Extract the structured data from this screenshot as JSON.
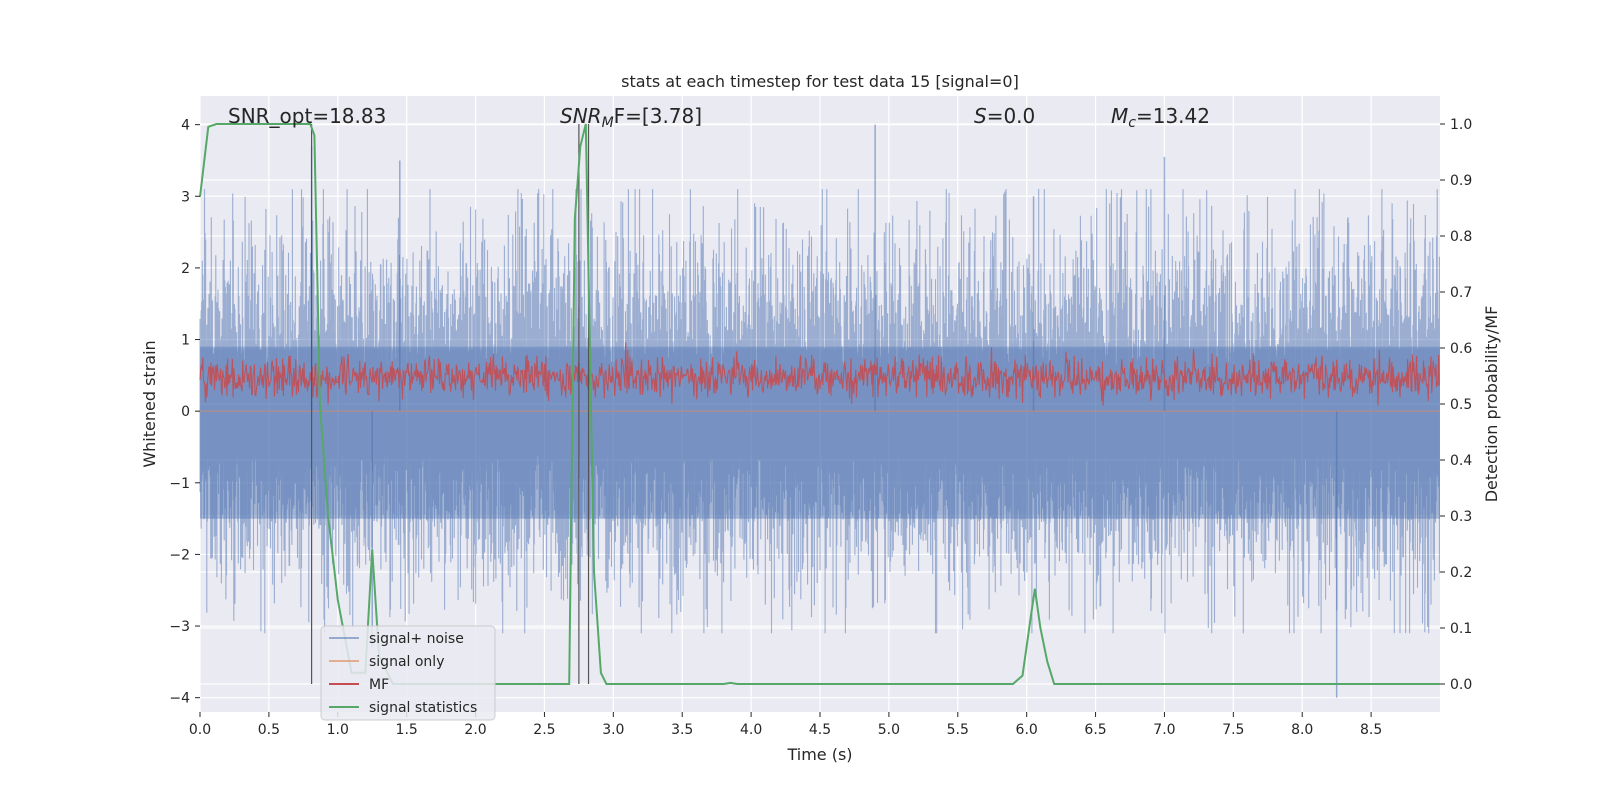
{
  "chart_data": {
    "type": "line",
    "title": "stats at each timestep for test data 15 [signal=0]",
    "xlabel": "Time (s)",
    "ylabel_left": "Whitened strain",
    "ylabel_right": "Detection probability/MF",
    "xlim": [
      0.0,
      9.0
    ],
    "ylim_left": [
      -4.2,
      4.4
    ],
    "ylim_right": [
      -0.05,
      1.05
    ],
    "x_ticks": [
      "0.0",
      "0.5",
      "1.0",
      "1.5",
      "2.0",
      "2.5",
      "3.0",
      "3.5",
      "4.0",
      "4.5",
      "5.0",
      "5.5",
      "6.0",
      "6.5",
      "7.0",
      "7.5",
      "8.0",
      "8.5"
    ],
    "y_ticks_left": [
      "4",
      "3",
      "2",
      "1",
      "0",
      "−1",
      "−2",
      "−3",
      "−4"
    ],
    "y_ticks_right": [
      "1.0",
      "0.9",
      "0.8",
      "0.7",
      "0.6",
      "0.5",
      "0.4",
      "0.3",
      "0.2",
      "0.1",
      "0.0"
    ],
    "grid": true,
    "background": "#eaeaf2",
    "annotations": {
      "snr_opt": "SNR_opt=18.83",
      "snr_mf_main": "SNR",
      "snr_mf_sub": "M",
      "snr_mf_rest": "F=[3.78]",
      "s_main": "S",
      "s_rest": "=0.0",
      "mc_main": "M",
      "mc_sub": "c",
      "mc_rest": "=13.42"
    },
    "vertical_markers_s": [
      0.81,
      2.75,
      2.82
    ],
    "series": [
      {
        "name": "signal+ noise",
        "axis": "left",
        "color": "#4c72b0",
        "description_range": [
          -3.3,
          4.0
        ],
        "peaks": [
          [
            0.81,
            3.7
          ],
          [
            1.45,
            3.5
          ],
          [
            4.9,
            4.0
          ],
          [
            6.05,
            3.0
          ],
          [
            7.0,
            3.55
          ],
          [
            1.25,
            -3.3
          ],
          [
            8.25,
            -4.0
          ]
        ]
      },
      {
        "name": "signal only",
        "axis": "left",
        "color": "#dd8452",
        "values_note": "flat at 0"
      },
      {
        "name": "MF",
        "axis": "right",
        "color": "#c44e52",
        "typical_range": [
          0.5,
          0.6
        ]
      },
      {
        "name": "signal statistics",
        "axis": "right",
        "color": "#55a868",
        "x": [
          0.0,
          0.06,
          0.12,
          0.3,
          0.5,
          0.7,
          0.8,
          0.83,
          0.87,
          0.93,
          1.0,
          1.1,
          1.2,
          1.25,
          1.3,
          1.4,
          2.5,
          2.68,
          2.72,
          2.76,
          2.8,
          2.86,
          2.91,
          2.95,
          3.1,
          3.8,
          3.85,
          3.9,
          4.5,
          5.9,
          5.97,
          6.03,
          6.06,
          6.1,
          6.15,
          6.2,
          6.5,
          9.0
        ],
        "y": [
          0.87,
          0.995,
          1.0,
          1.0,
          1.0,
          1.0,
          1.0,
          0.98,
          0.5,
          0.3,
          0.15,
          0.02,
          0.02,
          0.24,
          0.05,
          0.0,
          0.0,
          0.0,
          0.83,
          0.96,
          1.0,
          0.2,
          0.02,
          0.0,
          0.0,
          0.0,
          0.002,
          0.0,
          0.0,
          0.0,
          0.015,
          0.12,
          0.17,
          0.1,
          0.04,
          0.0,
          0.0,
          0.0
        ]
      }
    ]
  }
}
